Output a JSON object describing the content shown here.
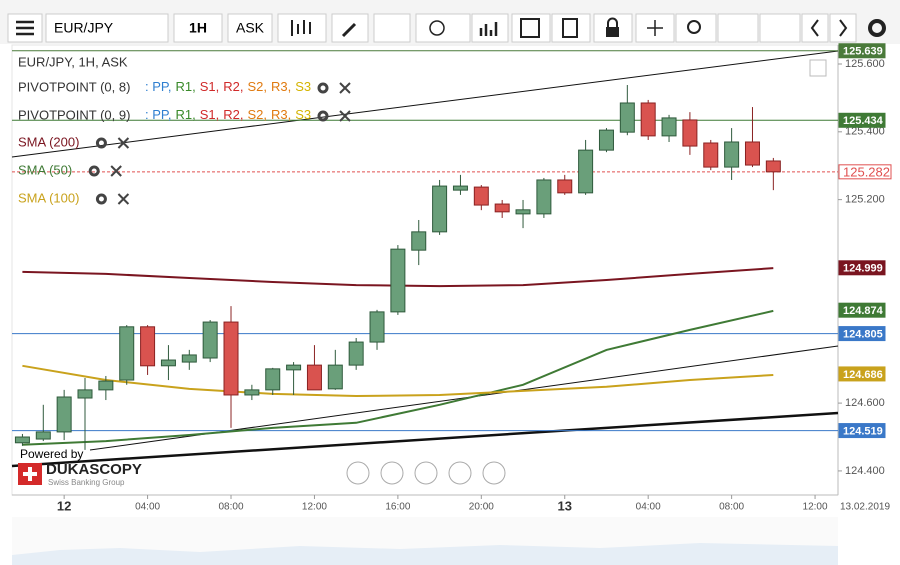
{
  "toolbar": {
    "symbol": "EUR/JPY",
    "period": "1H",
    "side": "ASK"
  },
  "chart_data": {
    "type": "candlestick",
    "title": "EUR/JPY, 1H, ASK",
    "indicators": [
      {
        "name": "PIVOTPOINT (0, 8)",
        "items": [
          ": PP,",
          "R1,",
          "S1,",
          "R2,",
          "S2,",
          "R3,",
          "S3"
        ],
        "colors": [
          "#2f7fd0",
          "#3a8a2a",
          "#d02a2a",
          "#d02a2a",
          "#e07a10",
          "#e07a10",
          "#d4b400"
        ]
      },
      {
        "name": "PIVOTPOINT (0, 9)",
        "items": [
          ": PP,",
          "R1,",
          "S1,",
          "R2,",
          "S2,",
          "R3,",
          "S3"
        ],
        "colors": [
          "#2f7fd0",
          "#3a8a2a",
          "#d02a2a",
          "#d02a2a",
          "#e07a10",
          "#e07a10",
          "#d4b400"
        ]
      }
    ],
    "series": [
      {
        "name": "SMA (200)",
        "color": "#7a1520",
        "x": [
          0,
          4,
          8,
          12,
          16,
          20,
          24,
          28,
          32,
          36
        ],
        "values": [
          124.987,
          124.981,
          124.969,
          124.957,
          124.948,
          124.945,
          124.948,
          124.963,
          124.981,
          124.998
        ]
      },
      {
        "name": "SMA (50)",
        "color": "#3f7a35",
        "x": [
          0,
          4,
          8,
          12,
          16,
          20,
          24,
          28,
          32,
          36
        ],
        "values": [
          124.477,
          124.488,
          124.506,
          124.527,
          124.542,
          124.595,
          124.654,
          124.757,
          124.816,
          124.872
        ]
      },
      {
        "name": "SMA (100)",
        "color": "#c9a21c",
        "x": [
          0,
          4,
          8,
          12,
          16,
          20,
          24,
          28,
          32,
          36
        ],
        "values": [
          124.71,
          124.668,
          124.642,
          124.627,
          124.621,
          124.624,
          124.636,
          124.648,
          124.668,
          124.683
        ]
      }
    ],
    "candles": {
      "open": [
        124.483,
        124.494,
        124.515,
        124.615,
        124.639,
        124.668,
        124.825,
        124.71,
        124.721,
        124.733,
        124.839,
        124.624,
        124.639,
        124.698,
        124.712,
        124.642,
        124.712,
        124.78,
        124.869,
        125.051,
        125.105,
        125.228,
        125.237,
        125.187,
        125.158,
        125.158,
        125.258,
        125.22,
        125.346,
        125.399,
        125.485,
        125.388,
        125.435,
        125.367,
        125.296,
        125.37,
        125.314
      ],
      "high": [
        124.509,
        124.595,
        124.639,
        124.674,
        124.68,
        124.83,
        124.83,
        124.771,
        124.757,
        124.845,
        124.886,
        124.654,
        124.704,
        124.721,
        124.771,
        124.757,
        124.792,
        124.875,
        125.066,
        125.14,
        125.258,
        125.273,
        125.243,
        125.199,
        125.199,
        125.264,
        125.273,
        125.376,
        125.411,
        125.538,
        125.494,
        125.45,
        125.458,
        125.376,
        125.411,
        125.473,
        125.323
      ],
      "low": [
        124.474,
        124.488,
        124.491,
        124.462,
        124.609,
        124.654,
        124.683,
        124.668,
        124.698,
        124.721,
        124.527,
        124.609,
        124.624,
        124.624,
        124.639,
        124.639,
        124.698,
        124.757,
        124.86,
        125.007,
        125.096,
        125.214,
        125.169,
        125.146,
        125.116,
        125.146,
        125.214,
        125.214,
        125.34,
        125.39,
        125.376,
        125.37,
        125.332,
        125.287,
        125.258,
        125.296,
        125.228
      ],
      "close": [
        124.5,
        124.515,
        124.618,
        124.639,
        124.665,
        124.825,
        124.71,
        124.727,
        124.742,
        124.839,
        124.624,
        124.639,
        124.701,
        124.712,
        124.639,
        124.712,
        124.78,
        124.869,
        125.054,
        125.105,
        125.24,
        125.24,
        125.184,
        125.164,
        125.17,
        125.258,
        125.22,
        125.346,
        125.405,
        125.485,
        125.388,
        125.441,
        125.358,
        125.296,
        125.37,
        125.302,
        125.282
      ],
      "up_color": "#6a9f7a",
      "down_color": "#d9534f"
    },
    "price_labels": [
      {
        "value": 125.639,
        "color": "#4a7a3a",
        "line": true
      },
      {
        "value": 125.434,
        "color": "#3f7a35",
        "line": true
      },
      {
        "value": 125.282,
        "color": "#e05050",
        "line": true
      },
      {
        "value": 124.999,
        "color": "#7a1520",
        "line": false
      },
      {
        "value": 124.874,
        "color": "#3f7a35",
        "line": false
      },
      {
        "value": 124.805,
        "color": "#3a78c8",
        "line": true
      },
      {
        "value": 124.686,
        "color": "#c9a21c",
        "line": false
      },
      {
        "value": 124.519,
        "color": "#3a78c8",
        "line": true
      }
    ],
    "xlim": [
      -0.5,
      39.1
    ],
    "xticks": [
      {
        "value": 2,
        "label": "12"
      },
      {
        "value": 6,
        "label": "04:00"
      },
      {
        "value": 10,
        "label": "08:00"
      },
      {
        "value": 14,
        "label": "12:00"
      },
      {
        "value": 18,
        "label": "16:00"
      },
      {
        "value": 22,
        "label": "20:00"
      },
      {
        "value": 26,
        "label": "13"
      },
      {
        "value": 30,
        "label": "04:00"
      },
      {
        "value": 34,
        "label": "08:00"
      },
      {
        "value": 38,
        "label": "12:00"
      }
    ],
    "date_label": "13.02.2019",
    "ylim": [
      124.329,
      125.656
    ],
    "yticks": [
      {
        "value": 124.4,
        "label": "124.400"
      },
      {
        "value": 124.6,
        "label": "124.600"
      },
      {
        "value": 125.2,
        "label": "125.200"
      },
      {
        "value": 125.4,
        "label": "125.400"
      },
      {
        "value": 125.6,
        "label": "125.600"
      }
    ],
    "grid": false
  },
  "branding": {
    "powered": "Powered by",
    "brand": "DUKASCOPY",
    "sub": "Swiss Banking Group"
  }
}
